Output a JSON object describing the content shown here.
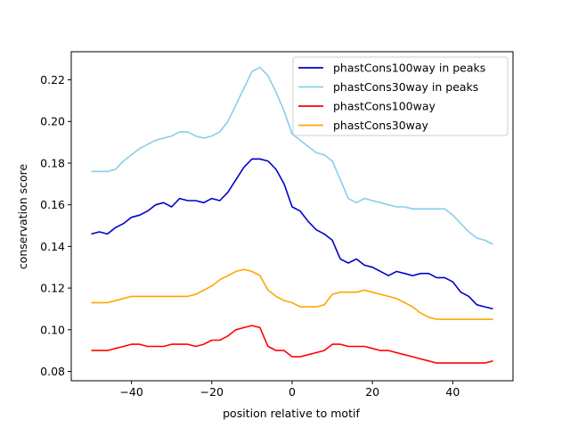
{
  "chart_data": {
    "type": "line",
    "title": "",
    "xlabel": "position relative to motif",
    "ylabel": "conservation score",
    "xlim": [
      -55,
      55
    ],
    "ylim": [
      0.0755,
      0.2335
    ],
    "xticks": [
      -40,
      -20,
      0,
      20,
      40
    ],
    "xtick_labels": [
      "−40",
      "−20",
      "0",
      "20",
      "40"
    ],
    "yticks": [
      0.08,
      0.1,
      0.12,
      0.14,
      0.16,
      0.18,
      0.2,
      0.22
    ],
    "ytick_labels": [
      "0.08",
      "0.10",
      "0.12",
      "0.14",
      "0.16",
      "0.18",
      "0.20",
      "0.22"
    ],
    "legend_position": "top-right",
    "series": [
      {
        "name": "phastCons100way in peaks",
        "color": "#0000cd",
        "x": [
          -50,
          -48,
          -46,
          -44,
          -42,
          -40,
          -38,
          -36,
          -34,
          -32,
          -30,
          -28,
          -26,
          -24,
          -22,
          -20,
          -18,
          -16,
          -14,
          -12,
          -10,
          -8,
          -6,
          -4,
          -2,
          0,
          2,
          4,
          6,
          8,
          10,
          12,
          14,
          16,
          18,
          20,
          22,
          24,
          26,
          28,
          30,
          32,
          34,
          36,
          38,
          40,
          42,
          44,
          46,
          48,
          50
        ],
        "y": [
          0.146,
          0.147,
          0.146,
          0.149,
          0.151,
          0.154,
          0.155,
          0.157,
          0.16,
          0.161,
          0.159,
          0.163,
          0.162,
          0.162,
          0.161,
          0.163,
          0.162,
          0.166,
          0.172,
          0.178,
          0.182,
          0.182,
          0.181,
          0.177,
          0.17,
          0.159,
          0.157,
          0.152,
          0.148,
          0.146,
          0.143,
          0.134,
          0.132,
          0.134,
          0.131,
          0.13,
          0.128,
          0.126,
          0.128,
          0.127,
          0.126,
          0.127,
          0.127,
          0.125,
          0.125,
          0.123,
          0.118,
          0.116,
          0.112,
          0.111,
          0.11
        ]
      },
      {
        "name": "phastCons30way in peaks",
        "color": "#87ceeb",
        "x": [
          -50,
          -48,
          -46,
          -44,
          -42,
          -40,
          -38,
          -36,
          -34,
          -32,
          -30,
          -28,
          -26,
          -24,
          -22,
          -20,
          -18,
          -16,
          -14,
          -12,
          -10,
          -8,
          -6,
          -4,
          -2,
          0,
          2,
          4,
          6,
          8,
          10,
          12,
          14,
          16,
          18,
          20,
          22,
          24,
          26,
          28,
          30,
          32,
          34,
          36,
          38,
          40,
          42,
          44,
          46,
          48,
          50
        ],
        "y": [
          0.176,
          0.176,
          0.176,
          0.177,
          0.181,
          0.184,
          0.187,
          0.189,
          0.191,
          0.192,
          0.193,
          0.195,
          0.195,
          0.193,
          0.192,
          0.193,
          0.195,
          0.2,
          0.208,
          0.216,
          0.224,
          0.226,
          0.222,
          0.214,
          0.205,
          0.194,
          0.191,
          0.188,
          0.185,
          0.184,
          0.181,
          0.172,
          0.163,
          0.161,
          0.163,
          0.162,
          0.161,
          0.16,
          0.159,
          0.159,
          0.158,
          0.158,
          0.158,
          0.158,
          0.158,
          0.155,
          0.151,
          0.147,
          0.144,
          0.143,
          0.141
        ]
      },
      {
        "name": "phastCons100way",
        "color": "#ff0000",
        "x": [
          -50,
          -48,
          -46,
          -44,
          -42,
          -40,
          -38,
          -36,
          -34,
          -32,
          -30,
          -28,
          -26,
          -24,
          -22,
          -20,
          -18,
          -16,
          -14,
          -12,
          -10,
          -8,
          -6,
          -4,
          -2,
          0,
          2,
          4,
          6,
          8,
          10,
          12,
          14,
          16,
          18,
          20,
          22,
          24,
          26,
          28,
          30,
          32,
          34,
          36,
          38,
          40,
          42,
          44,
          46,
          48,
          50
        ],
        "y": [
          0.09,
          0.09,
          0.09,
          0.091,
          0.092,
          0.093,
          0.093,
          0.092,
          0.092,
          0.092,
          0.093,
          0.093,
          0.093,
          0.092,
          0.093,
          0.095,
          0.095,
          0.097,
          0.1,
          0.101,
          0.102,
          0.101,
          0.092,
          0.09,
          0.09,
          0.087,
          0.087,
          0.088,
          0.089,
          0.09,
          0.093,
          0.093,
          0.092,
          0.092,
          0.092,
          0.091,
          0.09,
          0.09,
          0.089,
          0.088,
          0.087,
          0.086,
          0.085,
          0.084,
          0.084,
          0.084,
          0.084,
          0.084,
          0.084,
          0.084,
          0.085
        ]
      },
      {
        "name": "phastCons30way",
        "color": "#ffa500",
        "x": [
          -50,
          -48,
          -46,
          -44,
          -42,
          -40,
          -38,
          -36,
          -34,
          -32,
          -30,
          -28,
          -26,
          -24,
          -22,
          -20,
          -18,
          -16,
          -14,
          -12,
          -10,
          -8,
          -6,
          -4,
          -2,
          0,
          2,
          4,
          6,
          8,
          10,
          12,
          14,
          16,
          18,
          20,
          22,
          24,
          26,
          28,
          30,
          32,
          34,
          36,
          38,
          40,
          42,
          44,
          46,
          48,
          50
        ],
        "y": [
          0.113,
          0.113,
          0.113,
          0.114,
          0.115,
          0.116,
          0.116,
          0.116,
          0.116,
          0.116,
          0.116,
          0.116,
          0.116,
          0.117,
          0.119,
          0.121,
          0.124,
          0.126,
          0.128,
          0.129,
          0.128,
          0.126,
          0.119,
          0.116,
          0.114,
          0.113,
          0.111,
          0.111,
          0.111,
          0.112,
          0.117,
          0.118,
          0.118,
          0.118,
          0.119,
          0.118,
          0.117,
          0.116,
          0.115,
          0.113,
          0.111,
          0.108,
          0.106,
          0.105,
          0.105,
          0.105,
          0.105,
          0.105,
          0.105,
          0.105,
          0.105
        ]
      }
    ]
  }
}
